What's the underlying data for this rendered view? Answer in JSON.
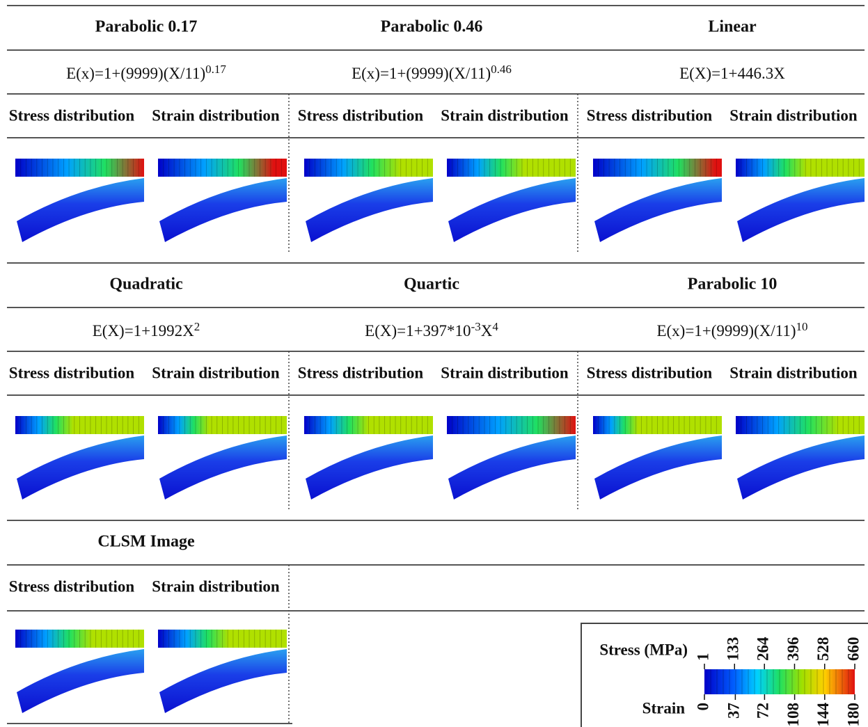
{
  "panels": [
    {
      "title": "Parabolic 0.17",
      "equation": [
        {
          "text": "E(x)=1+(9999)(X/11)"
        },
        {
          "sup": "0.17"
        }
      ],
      "stress_label": "Stress distribution",
      "strain_label": "Strain distribution"
    },
    {
      "title": "Parabolic 0.46",
      "equation": [
        {
          "text": "E(x)=1+(9999)(X/11)"
        },
        {
          "sup": "0.46"
        }
      ],
      "stress_label": "Stress distribution",
      "strain_label": "Strain distribution"
    },
    {
      "title": "Linear",
      "equation": [
        {
          "text": "E(X)=1+446.3X"
        }
      ],
      "stress_label": "Stress distribution",
      "strain_label": "Strain distribution"
    },
    {
      "title": "Quadratic",
      "equation": [
        {
          "text": "E(X)=1+1992X"
        },
        {
          "sup": "2"
        }
      ],
      "stress_label": "Stress distribution",
      "strain_label": "Strain distribution"
    },
    {
      "title": "Quartic",
      "equation": [
        {
          "text": "E(X)=1+397*10"
        },
        {
          "sup": "-3"
        },
        {
          "text": "X"
        },
        {
          "sup": "4"
        }
      ],
      "stress_label": "Stress distribution",
      "strain_label": "Strain distribution"
    },
    {
      "title": "Parabolic 10",
      "equation": [
        {
          "text": "E(x)=1+(9999)(X/11)"
        },
        {
          "sup": "10"
        }
      ],
      "stress_label": "Stress distribution",
      "strain_label": "Strain distribution"
    },
    {
      "title": "CLSM Image",
      "stress_label": "Stress distribution",
      "strain_label": "Strain distribution"
    }
  ],
  "legend": {
    "stress": {
      "label": "Stress (MPa)",
      "ticks": [
        1,
        133,
        264,
        396,
        528,
        660
      ]
    },
    "strain": {
      "label": "Strain",
      "ticks": [
        0,
        37,
        72,
        108,
        144,
        180
      ]
    }
  }
}
